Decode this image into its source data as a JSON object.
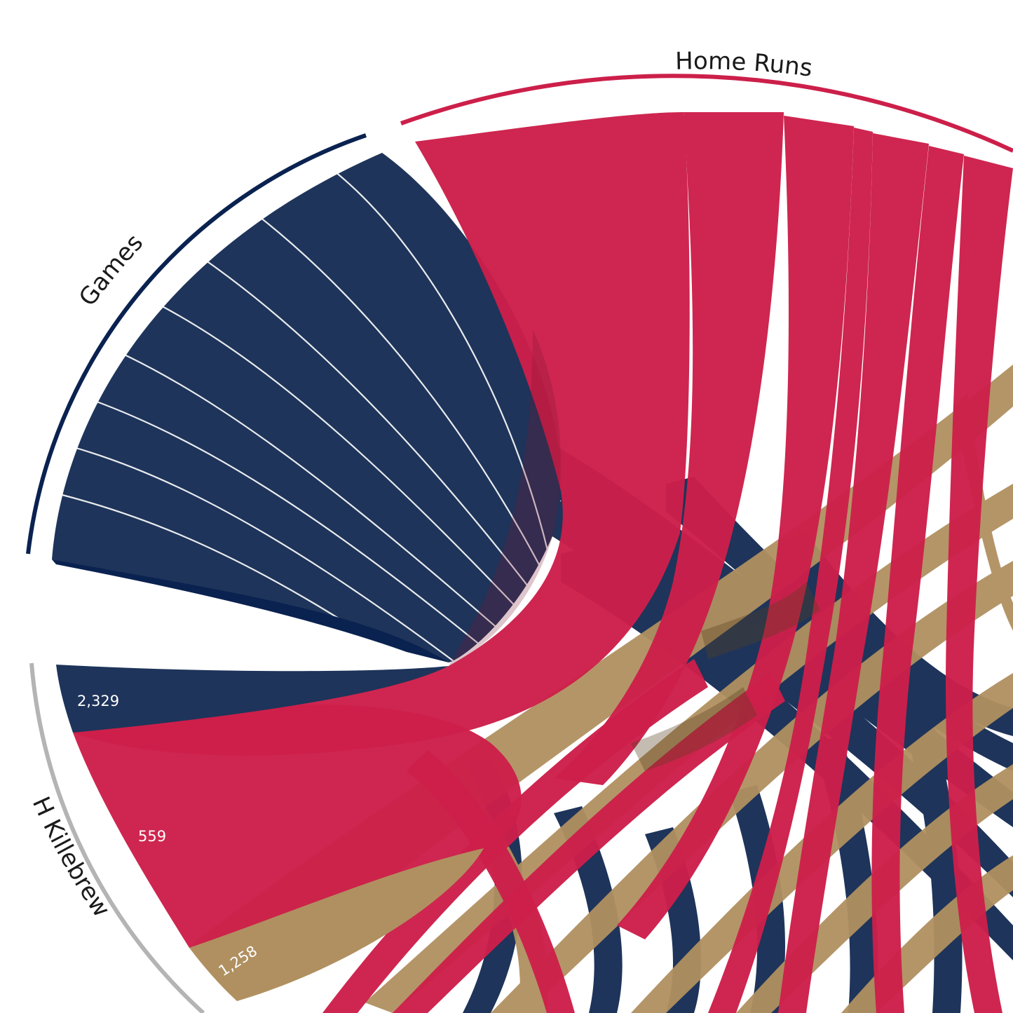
{
  "colors": {
    "games": "#1e345a",
    "games_dark": "#0a2250",
    "home_runs": "#cc1f4a",
    "gold": "#b09060",
    "player_arc": "#b4b4b4",
    "background": "#ffffff"
  },
  "groups": {
    "games": {
      "label": "Games"
    },
    "home_runs": {
      "label": "Home Runs"
    },
    "player": {
      "label": "H Killebrew"
    }
  },
  "player_values": {
    "games": "2,329",
    "home_runs": "559",
    "third": "1,258"
  }
}
